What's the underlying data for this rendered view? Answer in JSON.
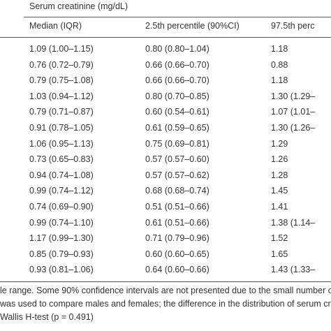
{
  "header": {
    "group_title": "Serum creatinine (mg/dL)"
  },
  "table": {
    "columns": [
      "Median (IQR)",
      "2.5th percentile (90%CI)",
      "97.5th perc"
    ],
    "rows": [
      [
        "1.09 (1.00–1.15)",
        "0.80 (0.80–1.04)",
        "1.18"
      ],
      [
        "0.76 (0.72–0.79)",
        "0.66 (0.66–0.70)",
        "0.88"
      ],
      [
        "0.79 (0.75–1.08)",
        "0.66 (0.66–0.70)",
        "1.18"
      ],
      [
        "1.03 (0.94–1.12)",
        "0.80 (0.70–0.85)",
        "1.30 (1.29–"
      ],
      [
        "0.79 (0.71–0.87)",
        "0.60 (0.54–0.61)",
        "1.07 (1.01–"
      ],
      [
        "0.91 (0.78–1.05)",
        "0.61 (0.59–0.65)",
        "1.30 (1.26–"
      ],
      [
        "1.06 (0.95–1.13)",
        "0.75 (0.69–0.81)",
        "1.29"
      ],
      [
        "0.73 (0.65–0.83)",
        "0.57 (0.57–0.60)",
        "1.26"
      ],
      [
        "0.94 (0.74–1.08)",
        "0.57 (0.57–0.62)",
        "1.28"
      ],
      [
        "0.99 (0.74–1.12)",
        "0.68 (0.68–0.74)",
        "1.45"
      ],
      [
        "0.74 (0.69–0.90)",
        "0.51 (0.51–0.66)",
        "1.41"
      ],
      [
        "0.99 (0.74–1.10)",
        "0.61 (0.51–0.66)",
        "1.38 (1.14–"
      ],
      [
        "1.17 (0.99–1.30)",
        "0.71 (0.79–0.96)",
        "1.52"
      ],
      [
        "0.85 (0.79–0.93)",
        "0.60 (0.60–0.65)",
        "1.65"
      ],
      [
        "0.93 (0.81–1.06)",
        "0.64 (0.60–0.66)",
        "1.43 (1.33–"
      ]
    ]
  },
  "footnote": [
    "le range. Some 90% confidence intervals are not presented due to the small number of",
    "was used to compare males and females; the difference in the distribution of serum creat",
    "Wallis H-test (p = 0.491)"
  ]
}
